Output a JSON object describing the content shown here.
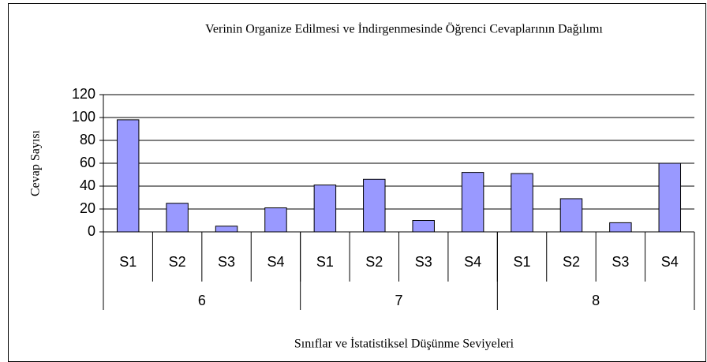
{
  "chart_data": {
    "type": "bar",
    "title": "Verinin Organize Edilmesi ve İndirgenmesinde Öğrenci Cevaplarının Dağılımı",
    "x_label": "Sınıflar ve İstatistiksel Düşünme Seviyeleri",
    "y_label": "Cevap Sayısı",
    "categories": [
      "S1",
      "S2",
      "S3",
      "S4",
      "S1",
      "S2",
      "S3",
      "S4",
      "S1",
      "S2",
      "S3",
      "S4"
    ],
    "groups": [
      "6",
      "7",
      "8"
    ],
    "values": [
      98,
      25,
      5,
      21,
      41,
      46,
      10,
      52,
      51,
      29,
      8,
      60
    ],
    "color": "#9999ff",
    "ylim": [
      0,
      120
    ],
    "yticks": [
      0,
      20,
      40,
      60,
      80,
      100,
      120
    ],
    "grid": true
  }
}
